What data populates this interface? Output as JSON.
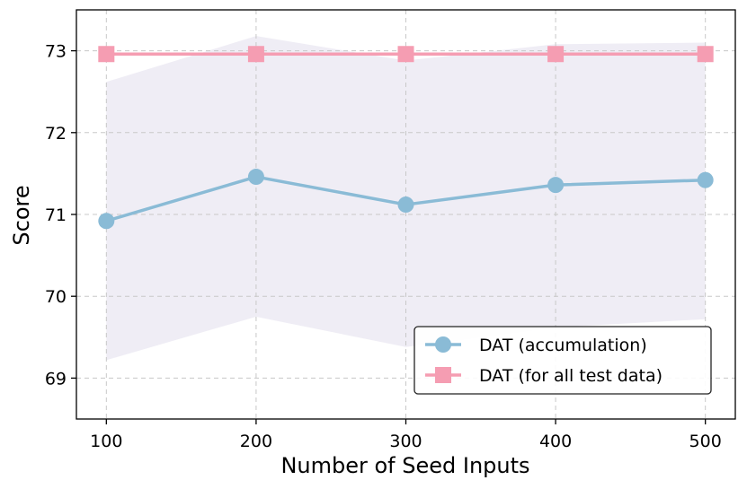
{
  "chart_data": {
    "type": "line",
    "title": "",
    "xlabel": "Number of Seed Inputs",
    "ylabel": "Score",
    "x": [
      100,
      200,
      300,
      400,
      500
    ],
    "xlim": [
      80,
      520
    ],
    "ylim": [
      68.5,
      73.5
    ],
    "xticks": [
      "100",
      "200",
      "300",
      "400",
      "500"
    ],
    "yticks": [
      "69",
      "70",
      "71",
      "72",
      "73"
    ],
    "grid": true,
    "legend_position": "bottom-right",
    "band": {
      "series": "DAT (accumulation)",
      "upper": [
        72.62,
        73.18,
        72.88,
        73.08,
        73.1
      ],
      "lower": [
        69.22,
        69.75,
        69.38,
        69.62,
        69.72
      ],
      "color": "#efedf5"
    },
    "series": [
      {
        "name": "DAT (accumulation)",
        "values": [
          70.92,
          71.46,
          71.12,
          71.36,
          71.42
        ],
        "color": "#8abbd6",
        "marker": "circle"
      },
      {
        "name": "DAT (for all test data)",
        "values": [
          72.96,
          72.96,
          72.96,
          72.96,
          72.96
        ],
        "color": "#f59db2",
        "marker": "square"
      }
    ]
  }
}
